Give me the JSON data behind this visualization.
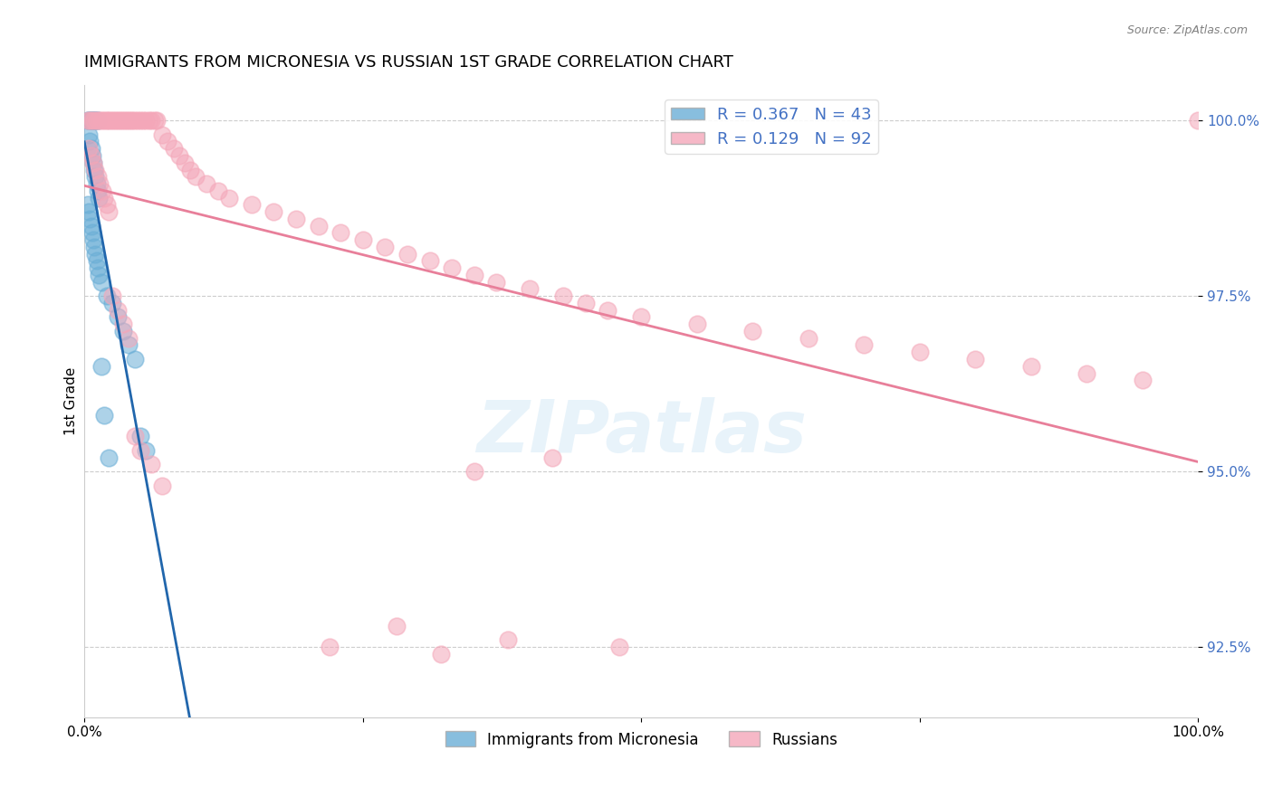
{
  "title": "IMMIGRANTS FROM MICRONESIA VS RUSSIAN 1ST GRADE CORRELATION CHART",
  "source": "Source: ZipAtlas.com",
  "ylabel": "1st Grade",
  "legend_blue_R": "0.367",
  "legend_blue_N": "43",
  "legend_pink_R": "0.129",
  "legend_pink_N": "92",
  "y_ticks": [
    92.5,
    95.0,
    97.5,
    100.0
  ],
  "y_tick_labels": [
    "92.5%",
    "95.0%",
    "97.5%",
    "100.0%"
  ],
  "xlim": [
    0.0,
    1.0
  ],
  "ylim": [
    91.5,
    100.5
  ],
  "blue_color": "#6aaed6",
  "pink_color": "#f4a7b9",
  "blue_line_color": "#2166ac",
  "pink_line_color": "#e87f9a",
  "background_color": "#ffffff",
  "blue_scatter_x": [
    0.003,
    0.004,
    0.005,
    0.006,
    0.007,
    0.008,
    0.009,
    0.01,
    0.011,
    0.012,
    0.004,
    0.005,
    0.006,
    0.007,
    0.008,
    0.009,
    0.01,
    0.011,
    0.012,
    0.013,
    0.003,
    0.004,
    0.005,
    0.006,
    0.007,
    0.008,
    0.009,
    0.01,
    0.011,
    0.012,
    0.013,
    0.015,
    0.02,
    0.025,
    0.03,
    0.035,
    0.04,
    0.045,
    0.05,
    0.055,
    0.015,
    0.018,
    0.022
  ],
  "blue_scatter_y": [
    100.0,
    100.0,
    100.0,
    100.0,
    100.0,
    100.0,
    100.0,
    100.0,
    100.0,
    100.0,
    99.8,
    99.7,
    99.6,
    99.5,
    99.4,
    99.3,
    99.2,
    99.1,
    99.0,
    98.9,
    98.8,
    98.7,
    98.6,
    98.5,
    98.4,
    98.3,
    98.2,
    98.1,
    98.0,
    97.9,
    97.8,
    97.7,
    97.5,
    97.4,
    97.2,
    97.0,
    96.8,
    96.6,
    95.5,
    95.3,
    96.5,
    95.8,
    95.2
  ],
  "pink_scatter_x": [
    0.003,
    0.005,
    0.007,
    0.009,
    0.011,
    0.013,
    0.015,
    0.017,
    0.019,
    0.021,
    0.023,
    0.025,
    0.027,
    0.029,
    0.031,
    0.033,
    0.035,
    0.037,
    0.039,
    0.041,
    0.043,
    0.045,
    0.048,
    0.05,
    0.053,
    0.055,
    0.058,
    0.06,
    0.063,
    0.065,
    0.07,
    0.075,
    0.08,
    0.085,
    0.09,
    0.095,
    0.1,
    0.11,
    0.12,
    0.13,
    0.15,
    0.17,
    0.19,
    0.21,
    0.23,
    0.25,
    0.27,
    0.29,
    0.31,
    0.33,
    0.35,
    0.37,
    0.4,
    0.43,
    0.45,
    0.47,
    0.5,
    0.55,
    0.6,
    0.65,
    0.7,
    0.75,
    0.8,
    0.85,
    0.9,
    0.95,
    1.0,
    0.004,
    0.006,
    0.008,
    0.01,
    0.012,
    0.014,
    0.016,
    0.018,
    0.02,
    0.022,
    0.025,
    0.03,
    0.035,
    0.04,
    0.045,
    0.05,
    0.06,
    0.07,
    0.35,
    0.42,
    0.28,
    0.38,
    0.22,
    0.32,
    0.48
  ],
  "pink_scatter_y": [
    100.0,
    100.0,
    100.0,
    100.0,
    100.0,
    100.0,
    100.0,
    100.0,
    100.0,
    100.0,
    100.0,
    100.0,
    100.0,
    100.0,
    100.0,
    100.0,
    100.0,
    100.0,
    100.0,
    100.0,
    100.0,
    100.0,
    100.0,
    100.0,
    100.0,
    100.0,
    100.0,
    100.0,
    100.0,
    100.0,
    99.8,
    99.7,
    99.6,
    99.5,
    99.4,
    99.3,
    99.2,
    99.1,
    99.0,
    98.9,
    98.8,
    98.7,
    98.6,
    98.5,
    98.4,
    98.3,
    98.2,
    98.1,
    98.0,
    97.9,
    97.8,
    97.7,
    97.6,
    97.5,
    97.4,
    97.3,
    97.2,
    97.1,
    97.0,
    96.9,
    96.8,
    96.7,
    96.6,
    96.5,
    96.4,
    96.3,
    100.0,
    99.6,
    99.5,
    99.4,
    99.3,
    99.2,
    99.1,
    99.0,
    98.9,
    98.8,
    98.7,
    97.5,
    97.3,
    97.1,
    96.9,
    95.5,
    95.3,
    95.1,
    94.8,
    95.0,
    95.2,
    92.8,
    92.6,
    92.5,
    92.4,
    92.5
  ]
}
